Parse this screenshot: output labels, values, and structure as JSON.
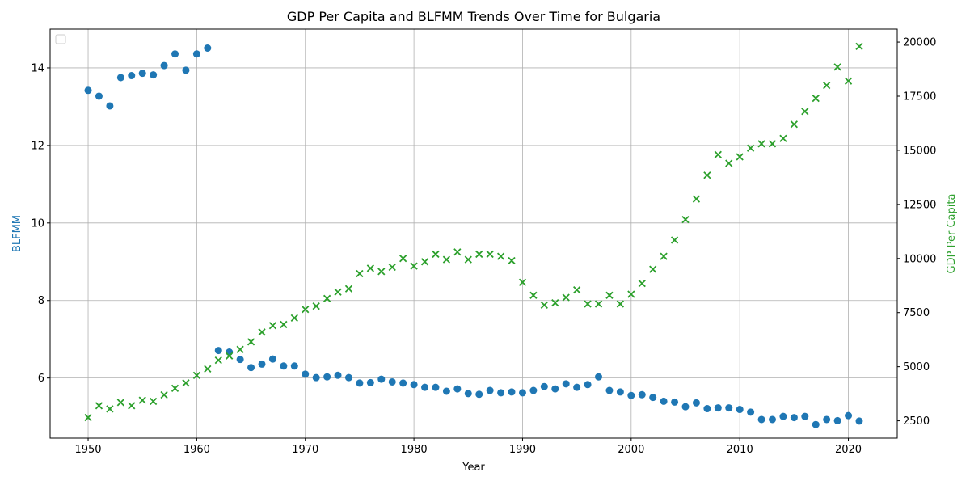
{
  "chart_data": {
    "type": "scatter",
    "title": "GDP Per Capita and BLFMM Trends Over Time for Bulgaria",
    "xlabel": "Year",
    "ylabel_left": "BLFMM",
    "ylabel_right": "GDP Per Capita",
    "xlim": [
      1946.5,
      2024.5
    ],
    "ylim_left": [
      4.45,
      15.0
    ],
    "ylim_right": [
      1700,
      20600
    ],
    "x_ticks": [
      1950,
      1960,
      1970,
      1980,
      1990,
      2000,
      2010,
      2020
    ],
    "y_ticks_left": [
      6,
      8,
      10,
      12,
      14
    ],
    "y_ticks_right": [
      2500,
      5000,
      7500,
      10000,
      12500,
      15000,
      17500,
      20000
    ],
    "y_tick_labels_right": [
      "2500",
      "5000",
      "7500",
      "10000",
      "12500",
      "15000",
      "17500",
      "20000"
    ],
    "grid": true,
    "legend": "top-left (empty)",
    "series": [
      {
        "name": "BLFMM",
        "axis": "left",
        "marker": "circle",
        "color": "#1f77b4",
        "x": [
          1950,
          1951,
          1952,
          1953,
          1954,
          1955,
          1956,
          1957,
          1958,
          1959,
          1960,
          1961,
          1962,
          1963,
          1964,
          1965,
          1966,
          1967,
          1968,
          1969,
          1970,
          1971,
          1972,
          1973,
          1974,
          1975,
          1976,
          1977,
          1978,
          1979,
          1980,
          1981,
          1982,
          1983,
          1984,
          1985,
          1986,
          1987,
          1988,
          1989,
          1990,
          1991,
          1992,
          1993,
          1994,
          1995,
          1996,
          1997,
          1998,
          1999,
          2000,
          2001,
          2002,
          2003,
          2004,
          2005,
          2006,
          2007,
          2008,
          2009,
          2010,
          2011,
          2012,
          2013,
          2014,
          2015,
          2016,
          2017,
          2018,
          2019,
          2020,
          2021
        ],
        "values": [
          13.42,
          13.27,
          13.02,
          13.75,
          13.8,
          13.86,
          13.82,
          14.06,
          14.36,
          13.94,
          14.36,
          14.51,
          6.71,
          6.67,
          6.48,
          6.27,
          6.36,
          6.49,
          6.31,
          6.31,
          6.1,
          6.01,
          6.03,
          6.07,
          6.01,
          5.87,
          5.88,
          5.97,
          5.9,
          5.87,
          5.83,
          5.76,
          5.76,
          5.66,
          5.72,
          5.6,
          5.58,
          5.68,
          5.62,
          5.64,
          5.62,
          5.68,
          5.78,
          5.72,
          5.85,
          5.76,
          5.83,
          6.03,
          5.68,
          5.64,
          5.55,
          5.57,
          5.5,
          5.4,
          5.38,
          5.26,
          5.36,
          5.21,
          5.23,
          5.23,
          5.19,
          5.12,
          4.93,
          4.93,
          5.01,
          4.98,
          5.01,
          4.8,
          4.93,
          4.9,
          5.03,
          4.89
        ]
      },
      {
        "name": "GDP Per Capita",
        "axis": "right",
        "marker": "x",
        "color": "#2ca02c",
        "x": [
          1950,
          1951,
          1952,
          1953,
          1954,
          1955,
          1956,
          1957,
          1958,
          1959,
          1960,
          1961,
          1962,
          1963,
          1964,
          1965,
          1966,
          1967,
          1968,
          1969,
          1970,
          1971,
          1972,
          1973,
          1974,
          1975,
          1976,
          1977,
          1978,
          1979,
          1980,
          1981,
          1982,
          1983,
          1984,
          1985,
          1986,
          1987,
          1988,
          1989,
          1990,
          1991,
          1992,
          1993,
          1994,
          1995,
          1996,
          1997,
          1998,
          1999,
          2000,
          2001,
          2002,
          2003,
          2004,
          2005,
          2006,
          2007,
          2008,
          2009,
          2010,
          2011,
          2012,
          2013,
          2014,
          2015,
          2016,
          2017,
          2018,
          2019,
          2020,
          2021
        ],
        "values": [
          2650,
          3200,
          3050,
          3350,
          3200,
          3450,
          3400,
          3700,
          4000,
          4250,
          4600,
          4900,
          5300,
          5500,
          5800,
          6150,
          6600,
          6900,
          6950,
          7250,
          7650,
          7800,
          8150,
          8450,
          8600,
          9300,
          9550,
          9400,
          9600,
          10000,
          9650,
          9850,
          10200,
          9950,
          10300,
          9950,
          10200,
          10200,
          10100,
          9900,
          8900,
          8300,
          7850,
          7950,
          8200,
          8550,
          7900,
          7900,
          8300,
          7900,
          8350,
          8850,
          9500,
          10100,
          10850,
          11800,
          12750,
          13850,
          14800,
          14400,
          14700,
          15100,
          15300,
          15300,
          15550,
          16200,
          16800,
          17400,
          18000,
          18850,
          18200,
          19800
        ]
      }
    ]
  }
}
